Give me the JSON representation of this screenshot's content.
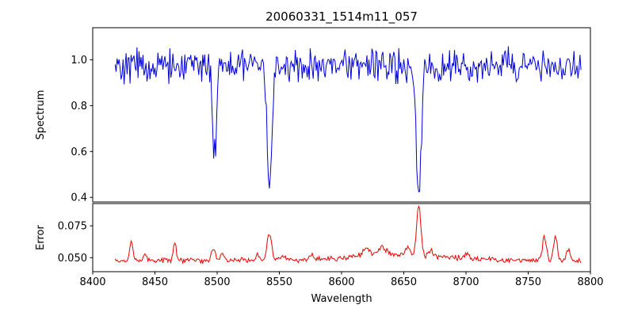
{
  "chart_data": {
    "type": "line",
    "title": "20060331_1514m11_057",
    "xlabel": "Wavelength",
    "xlim": [
      8400,
      8800
    ],
    "x_ticks": [
      8400,
      8450,
      8500,
      8550,
      8600,
      8650,
      8700,
      8750,
      8800
    ],
    "x_tick_labels": [
      "8400",
      "8450",
      "8500",
      "8550",
      "8600",
      "8650",
      "8700",
      "8750",
      "8800"
    ],
    "x_start": 8418,
    "x_end": 8793,
    "step": 0.8,
    "seed": 42,
    "grid": false,
    "legend": "none",
    "spectrum": {
      "ylabel": "Spectrum",
      "ylim": [
        0.38,
        1.14
      ],
      "y_ticks": [
        0.4,
        0.6,
        0.8,
        1.0
      ],
      "y_tick_labels": [
        "0.4",
        "0.6",
        "0.8",
        "1.0"
      ],
      "color": "#0000dd",
      "baseline": 0.975,
      "noise": 0.09,
      "absorption_lines": [
        {
          "center": 8498.0,
          "depth": 0.38,
          "sigma": 1.6
        },
        {
          "center": 8542.1,
          "depth": 0.55,
          "sigma": 2.0
        },
        {
          "center": 8662.1,
          "depth": 0.58,
          "sigma": 1.9
        }
      ]
    },
    "error": {
      "ylabel": "Error",
      "ylim": [
        0.039,
        0.0925
      ],
      "y_ticks": [
        0.05,
        0.075
      ],
      "y_tick_labels": [
        "0.050",
        "0.075"
      ],
      "color": "#ee0000",
      "baseline": 0.0478,
      "noise": 0.0025,
      "spikes": [
        {
          "center": 8431,
          "height": 0.016,
          "sigma": 1.2
        },
        {
          "center": 8442,
          "height": 0.004,
          "sigma": 1.5
        },
        {
          "center": 8466,
          "height": 0.015,
          "sigma": 1.2
        },
        {
          "center": 8497,
          "height": 0.008,
          "sigma": 1.8
        },
        {
          "center": 8504,
          "height": 0.006,
          "sigma": 1.5
        },
        {
          "center": 8533,
          "height": 0.005,
          "sigma": 1.5
        },
        {
          "center": 8542,
          "height": 0.021,
          "sigma": 1.8
        },
        {
          "center": 8552,
          "height": 0.004,
          "sigma": 2.0
        },
        {
          "center": 8576,
          "height": 0.003,
          "sigma": 2.0
        },
        {
          "center": 8620,
          "height": 0.006,
          "sigma": 2.5
        },
        {
          "center": 8633,
          "height": 0.005,
          "sigma": 2.5
        },
        {
          "center": 8653,
          "height": 0.006,
          "sigma": 2.0
        },
        {
          "center": 8662,
          "height": 0.039,
          "sigma": 1.7
        },
        {
          "center": 8672,
          "height": 0.005,
          "sigma": 2.0
        },
        {
          "center": 8700,
          "height": 0.003,
          "sigma": 2.0
        },
        {
          "center": 8763,
          "height": 0.018,
          "sigma": 1.6
        },
        {
          "center": 8772,
          "height": 0.02,
          "sigma": 1.4
        },
        {
          "center": 8782,
          "height": 0.008,
          "sigma": 1.5
        }
      ],
      "bumps": [
        {
          "center": 8650,
          "height": 0.0035,
          "sigma": 40
        },
        {
          "center": 8630,
          "height": 0.002,
          "sigma": 15
        }
      ]
    }
  }
}
